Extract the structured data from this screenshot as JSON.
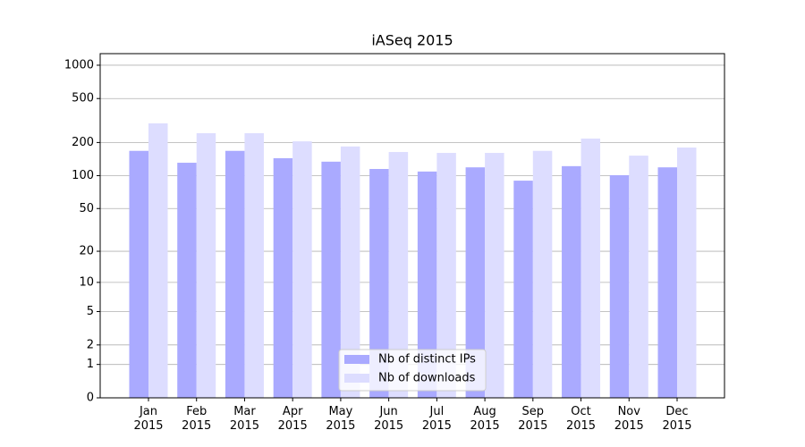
{
  "chart_data": {
    "type": "bar",
    "title": "iASeq 2015",
    "categories": [
      "Jan\n2015",
      "Feb\n2015",
      "Mar\n2015",
      "Apr\n2015",
      "May\n2015",
      "Jun\n2015",
      "Jul\n2015",
      "Aug\n2015",
      "Sep\n2015",
      "Oct\n2015",
      "Nov\n2015",
      "Dec\n2015"
    ],
    "series": [
      {
        "name": "Nb of distinct IPs",
        "color": "#aaaaff",
        "values": [
          168,
          131,
          168,
          144,
          134,
          115,
          109,
          119,
          90,
          122,
          101,
          119
        ]
      },
      {
        "name": "Nb of downloads",
        "color": "#ddddff",
        "values": [
          298,
          243,
          243,
          205,
          184,
          164,
          161,
          161,
          168,
          217,
          152,
          180
        ]
      }
    ],
    "yscale": "log1p",
    "ylim": [
      0,
      1272
    ],
    "yticks": [
      0,
      1,
      2,
      5,
      10,
      20,
      50,
      100,
      200,
      500,
      1000
    ],
    "grid": true,
    "legend": "lower center"
  }
}
